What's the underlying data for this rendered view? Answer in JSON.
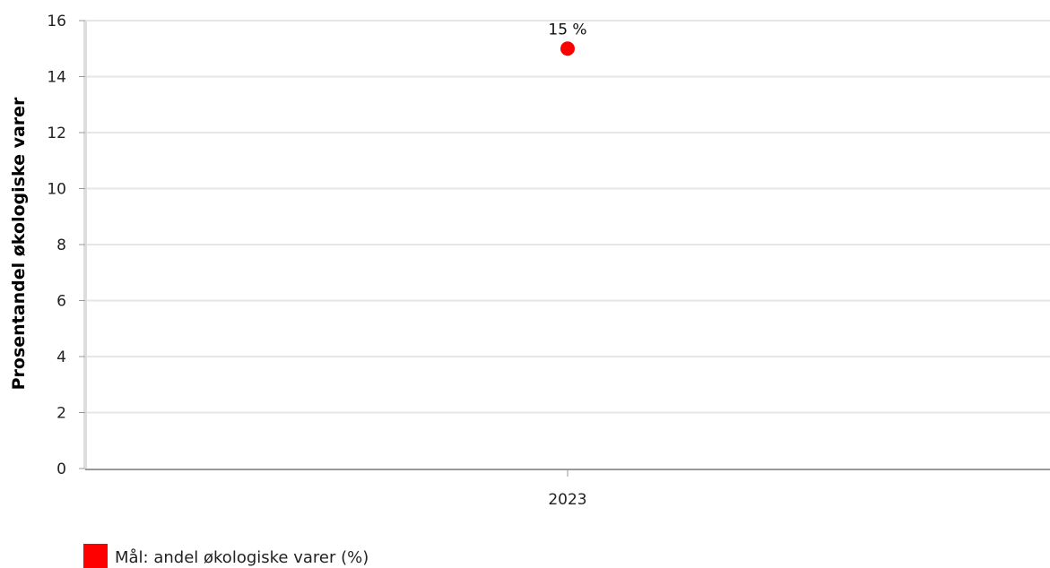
{
  "chart_data": {
    "type": "scatter",
    "categories": [
      "2023"
    ],
    "series": [
      {
        "name": "Mål: andel økologiske varer (%)",
        "values": [
          15
        ],
        "data_labels": [
          "15 %"
        ],
        "color": "#ff0000"
      }
    ],
    "ylabel": "Prosentandel økologiske varer",
    "xlabel": "",
    "ylim": [
      0,
      16
    ],
    "yticks": [
      "0",
      "2",
      "4",
      "6",
      "8",
      "10",
      "12",
      "14",
      "16"
    ],
    "grid": true,
    "legend_position": "bottom-left",
    "colors": {
      "grid": "#e6e6e6",
      "axis": "#999999"
    }
  }
}
